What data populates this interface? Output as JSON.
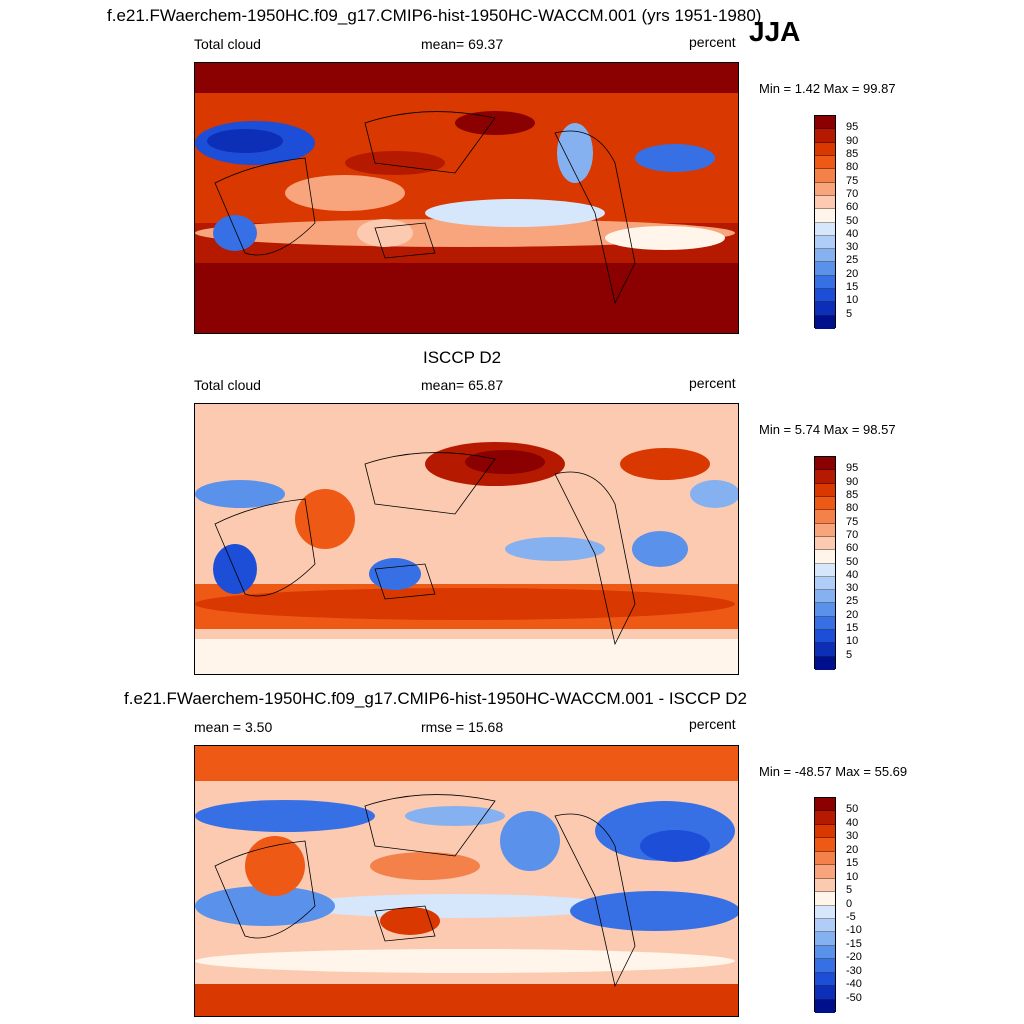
{
  "season": "JJA",
  "panels": [
    {
      "id": "model",
      "title": "f.e21.FWaerchem-1950HC.f09_g17.CMIP6-hist-1950HC-WACCM.001 (yrs 1951-1980)",
      "left_label": "Total cloud",
      "center_label": "mean=  69.37",
      "units": "percent",
      "minmax": "Min =   1.42 Max =  99.87",
      "colorbar_ticks": [
        "95",
        "90",
        "85",
        "80",
        "75",
        "70",
        "60",
        "50",
        "40",
        "30",
        "25",
        "20",
        "15",
        "10",
        "5"
      ],
      "colors": [
        "#8b0000",
        "#b51a00",
        "#d93800",
        "#ee5a16",
        "#f4804a",
        "#f8a57d",
        "#fbcab0",
        "#fff5ea",
        "#d6e6fb",
        "#b0cdf7",
        "#86b1f1",
        "#5a91ea",
        "#3770e4",
        "#1c4ed7",
        "#0d2fb8",
        "#000f8c"
      ],
      "map_overview": "high"
    },
    {
      "id": "obs",
      "title": "ISCCP D2",
      "left_label": "Total cloud",
      "center_label": "mean=  65.87",
      "units": "percent",
      "minmax": "Min =   5.74 Max =  98.57",
      "colorbar_ticks": [
        "95",
        "90",
        "85",
        "80",
        "75",
        "70",
        "60",
        "50",
        "40",
        "30",
        "25",
        "20",
        "15",
        "10",
        "5"
      ],
      "colors": [
        "#8b0000",
        "#b51a00",
        "#d93800",
        "#ee5a16",
        "#f4804a",
        "#f8a57d",
        "#fbcab0",
        "#fff5ea",
        "#d6e6fb",
        "#b0cdf7",
        "#86b1f1",
        "#5a91ea",
        "#3770e4",
        "#1c4ed7",
        "#0d2fb8",
        "#000f8c"
      ],
      "map_overview": "medium"
    },
    {
      "id": "diff",
      "title": "f.e21.FWaerchem-1950HC.f09_g17.CMIP6-hist-1950HC-WACCM.001 - ISCCP D2",
      "left_label": "mean =   3.50",
      "center_label": "rmse =  15.68",
      "units": "percent",
      "minmax": "Min = -48.57 Max =  55.69",
      "colorbar_ticks": [
        "50",
        "40",
        "30",
        "20",
        "15",
        "10",
        "5",
        "0",
        "-5",
        "-10",
        "-15",
        "-20",
        "-30",
        "-40",
        "-50"
      ],
      "colors": [
        "#8b0000",
        "#b51a00",
        "#d93800",
        "#ee5a16",
        "#f4804a",
        "#f8a57d",
        "#fbcab0",
        "#fff5ea",
        "#d6e6fb",
        "#b0cdf7",
        "#86b1f1",
        "#5a91ea",
        "#3770e4",
        "#1c4ed7",
        "#0d2fb8",
        "#000f8c"
      ],
      "map_overview": "diff"
    }
  ]
}
